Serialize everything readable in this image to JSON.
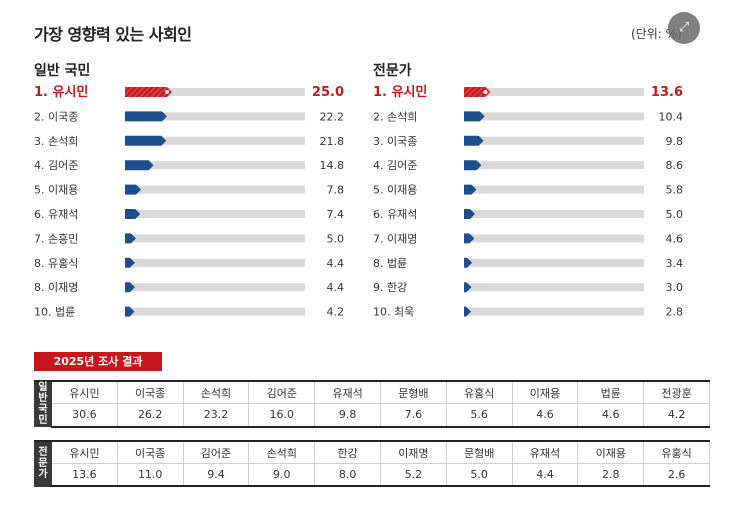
{
  "header": {
    "title": "가장 영향력 있는 사회인",
    "unit": "(단위: %)"
  },
  "colors": {
    "bar": "#1f4e8c",
    "top_bar": "#e03a3e",
    "track": "#d9d9d9",
    "highlight_text": "#c8161d"
  },
  "chart_data": [
    {
      "type": "bar",
      "title": "일반 국민",
      "categories": [
        "1. 유시민",
        "2. 이국종",
        "3. 손석희",
        "4. 김어준",
        "5. 이재용",
        "6. 유재석",
        "7. 손흥민",
        "8. 유홍식",
        "8. 이재명",
        "10. 법륜"
      ],
      "values": [
        25.0,
        22.2,
        21.8,
        14.8,
        7.8,
        7.4,
        5.0,
        4.4,
        4.4,
        4.2
      ],
      "value_labels": [
        "25.0",
        "22.2",
        "21.8",
        "14.8",
        "7.8",
        "7.4",
        "5.0",
        "4.4",
        "4.4",
        "4.2"
      ],
      "xlim": [
        0,
        100
      ]
    },
    {
      "type": "bar",
      "title": "전문가",
      "categories": [
        "1. 유시민",
        "2. 손석희",
        "3. 이국종",
        "4. 김어준",
        "5. 이재용",
        "6. 유재석",
        "7. 이재명",
        "8. 법륜",
        "9. 한강",
        "10. 최욱"
      ],
      "values": [
        13.6,
        10.4,
        9.8,
        8.6,
        5.8,
        5.0,
        4.6,
        3.4,
        3.0,
        2.8
      ],
      "value_labels": [
        "13.6",
        "10.4",
        "9.8",
        "8.6",
        "5.8",
        "5.0",
        "4.6",
        "3.4",
        "3.0",
        "2.8"
      ],
      "xlim": [
        0,
        100
      ]
    }
  ],
  "survey_2025": {
    "label": "2025년 조사 결과",
    "general": {
      "side": [
        "일",
        "반",
        "국",
        "민"
      ],
      "names": [
        "유시민",
        "이국종",
        "손석희",
        "김어준",
        "유재석",
        "문형배",
        "유홍식",
        "이재용",
        "법륜",
        "전광훈"
      ],
      "values": [
        "30.6",
        "26.2",
        "23.2",
        "16.0",
        "9.8",
        "7.6",
        "5.6",
        "4.6",
        "4.6",
        "4.2"
      ]
    },
    "expert": {
      "side": [
        "전",
        "문",
        "가"
      ],
      "names": [
        "유시민",
        "이국종",
        "김어준",
        "손석희",
        "한강",
        "이재명",
        "문형배",
        "유재석",
        "이재용",
        "유홍식"
      ],
      "values": [
        "13.6",
        "11.0",
        "9.4",
        "9.0",
        "8.0",
        "5.2",
        "5.0",
        "4.4",
        "2.8",
        "2.6"
      ]
    }
  }
}
